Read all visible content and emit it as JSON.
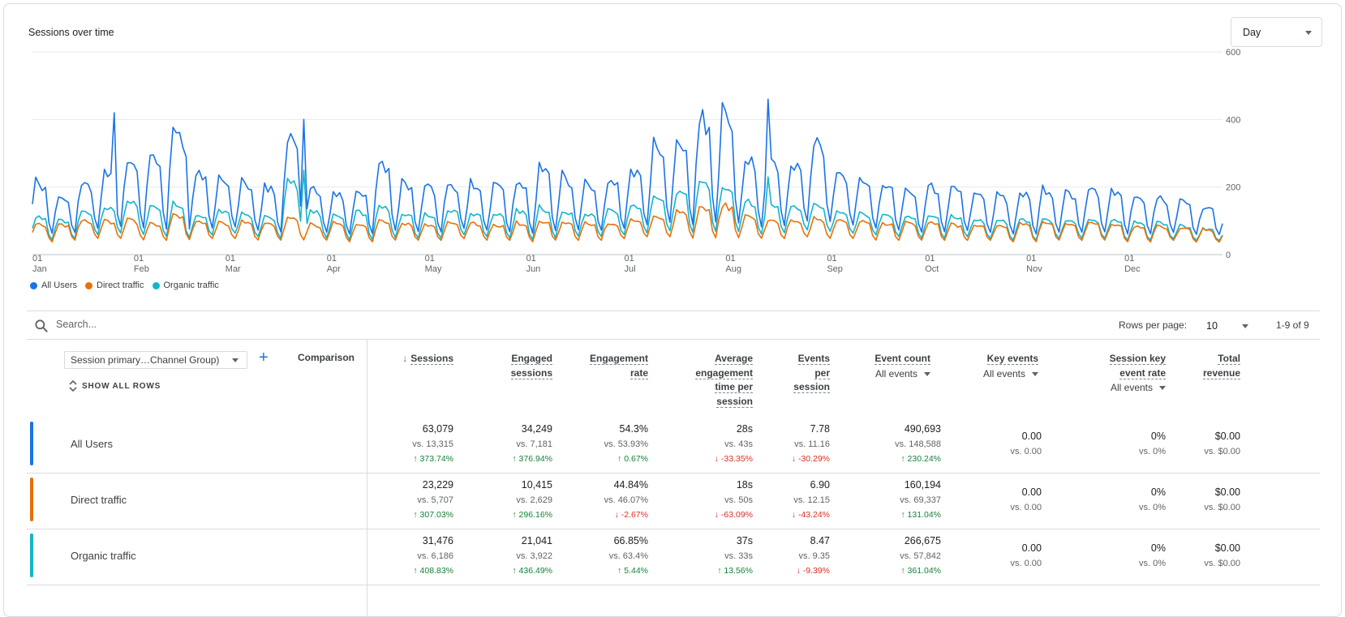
{
  "chart_title": "Sessions over time",
  "period_select": "Day",
  "chart_data": {
    "type": "line",
    "x_tick_labels": [
      [
        "01",
        "Jan"
      ],
      [
        "01",
        "Feb"
      ],
      [
        "01",
        "Mar"
      ],
      [
        "01",
        "Apr"
      ],
      [
        "01",
        "May"
      ],
      [
        "01",
        "Jun"
      ],
      [
        "01",
        "Jul"
      ],
      [
        "01",
        "Aug"
      ],
      [
        "01",
        "Sep"
      ],
      [
        "01",
        "Oct"
      ],
      [
        "01",
        "Nov"
      ],
      [
        "01",
        "Dec"
      ]
    ],
    "y_ticks": [
      0,
      200,
      400,
      600
    ],
    "ylim": [
      0,
      600
    ],
    "days": 365,
    "month_start_days": [
      0,
      31,
      59,
      90,
      120,
      151,
      181,
      212,
      243,
      273,
      304,
      334
    ],
    "series": [
      {
        "name": "All Users",
        "color": "#1a73e8",
        "weekly_low": [
          55,
          60,
          70,
          75,
          70,
          65,
          60,
          70,
          75,
          65,
          60,
          65,
          60,
          55,
          55,
          60,
          60,
          60,
          70,
          65,
          60,
          55,
          60,
          65,
          65,
          70,
          80,
          85,
          75,
          80,
          75,
          70,
          75,
          90,
          85,
          80,
          70,
          65,
          60,
          60,
          65,
          60,
          55,
          55,
          60,
          60,
          60,
          55,
          55,
          60,
          55,
          55,
          60
        ],
        "weekly_high": [
          230,
          190,
          230,
          260,
          300,
          320,
          420,
          260,
          240,
          230,
          220,
          390,
          210,
          200,
          210,
          300,
          230,
          220,
          230,
          230,
          220,
          230,
          280,
          250,
          230,
          240,
          270,
          350,
          360,
          450,
          460,
          320,
          300,
          290,
          360,
          260,
          240,
          230,
          210,
          220,
          210,
          200,
          190,
          200,
          210,
          200,
          210,
          200,
          190,
          180,
          170,
          150,
          120
        ],
        "peaks": [
          [
            25,
            420
          ],
          [
            47,
            290
          ],
          [
            83,
            400
          ],
          [
            211,
            450
          ],
          [
            225,
            460
          ]
        ]
      },
      {
        "name": "Direct traffic",
        "color": "#e8710a",
        "weekly_low": [
          35,
          40,
          45,
          45,
          40,
          40,
          40,
          45,
          45,
          40,
          40,
          40,
          40,
          35,
          35,
          40,
          40,
          40,
          45,
          40,
          40,
          35,
          40,
          40,
          40,
          45,
          50,
          50,
          45,
          45,
          45,
          45,
          45,
          50,
          45,
          45,
          40,
          40,
          40,
          40,
          40,
          40,
          35,
          35,
          40,
          40,
          40,
          35,
          35,
          40,
          35,
          35,
          40
        ],
        "weekly_high": [
          100,
          95,
          110,
          105,
          110,
          100,
          130,
          105,
          100,
          105,
          100,
          120,
          95,
          100,
          100,
          105,
          100,
          95,
          100,
          100,
          95,
          100,
          105,
          100,
          100,
          100,
          110,
          120,
          140,
          150,
          160,
          120,
          110,
          110,
          115,
          110,
          105,
          100,
          100,
          100,
          95,
          95,
          95,
          100,
          100,
          95,
          100,
          95,
          90,
          90,
          85,
          80,
          70
        ],
        "peaks": []
      },
      {
        "name": "Organic traffic",
        "color": "#12b5cb",
        "weekly_low": [
          40,
          45,
          55,
          60,
          55,
          50,
          45,
          55,
          60,
          50,
          45,
          50,
          45,
          40,
          40,
          45,
          45,
          45,
          55,
          50,
          45,
          40,
          45,
          50,
          50,
          55,
          60,
          65,
          60,
          60,
          60,
          55,
          60,
          70,
          65,
          60,
          55,
          50,
          45,
          45,
          50,
          45,
          40,
          40,
          45,
          45,
          45,
          40,
          40,
          45,
          40,
          40,
          45
        ],
        "weekly_high": [
          120,
          110,
          140,
          150,
          170,
          150,
          160,
          120,
          140,
          130,
          120,
          250,
          140,
          130,
          140,
          160,
          130,
          130,
          140,
          130,
          130,
          140,
          150,
          140,
          130,
          140,
          160,
          180,
          200,
          230,
          220,
          170,
          160,
          150,
          160,
          140,
          130,
          130,
          120,
          120,
          120,
          110,
          110,
          110,
          110,
          110,
          110,
          110,
          100,
          100,
          90,
          80,
          70
        ],
        "peaks": [
          [
            83,
            250
          ],
          [
            225,
            230
          ]
        ]
      }
    ]
  },
  "legend": [
    {
      "label": "All Users",
      "color": "#1a73e8"
    },
    {
      "label": "Direct traffic",
      "color": "#e8710a"
    },
    {
      "label": "Organic traffic",
      "color": "#12b5cb"
    }
  ],
  "search": {
    "placeholder": "Search..."
  },
  "pagination": {
    "rows_per_page_label": "Rows per page:",
    "rows_per_page": "10",
    "range": "1-9 of 9"
  },
  "table": {
    "dimension_select": "Session primary…Channel Group)",
    "add_symbol": "+",
    "comparison_label": "Comparison",
    "show_all_rows": "SHOW ALL ROWS",
    "columns": [
      {
        "lines": [
          "Sessions"
        ],
        "sub": ""
      },
      {
        "lines": [
          "Engaged",
          "sessions"
        ],
        "sub": ""
      },
      {
        "lines": [
          "Engagement",
          "rate"
        ],
        "sub": ""
      },
      {
        "lines": [
          "Average",
          "engagement",
          "time per",
          "session"
        ],
        "sub": ""
      },
      {
        "lines": [
          "Events",
          "per",
          "session"
        ],
        "sub": ""
      },
      {
        "lines": [
          "Event count"
        ],
        "sub": "All events"
      },
      {
        "lines": [
          "Key events"
        ],
        "sub": "All events"
      },
      {
        "lines": [
          "Session key",
          "event rate"
        ],
        "sub": "All events"
      },
      {
        "lines": [
          "Total",
          "revenue"
        ],
        "sub": ""
      }
    ],
    "rows": [
      {
        "label": "All Users",
        "color": "#1a73e8",
        "cells": [
          {
            "v": "63,079",
            "vs": "vs. 13,315",
            "ch": "373.74%",
            "dir": "up"
          },
          {
            "v": "34,249",
            "vs": "vs. 7,181",
            "ch": "376.94%",
            "dir": "up"
          },
          {
            "v": "54.3%",
            "vs": "vs. 53.93%",
            "ch": "0.67%",
            "dir": "up"
          },
          {
            "v": "28s",
            "vs": "vs. 43s",
            "ch": "-33.35%",
            "dir": "down"
          },
          {
            "v": "7.78",
            "vs": "vs. 11.16",
            "ch": "-30.29%",
            "dir": "down"
          },
          {
            "v": "490,693",
            "vs": "vs. 148,588",
            "ch": "230.24%",
            "dir": "up"
          },
          {
            "v": "0.00",
            "vs": "vs. 0.00",
            "ch": "",
            "dir": ""
          },
          {
            "v": "0%",
            "vs": "vs. 0%",
            "ch": "",
            "dir": ""
          },
          {
            "v": "$0.00",
            "vs": "vs. $0.00",
            "ch": "",
            "dir": ""
          }
        ]
      },
      {
        "label": "Direct traffic",
        "color": "#e8710a",
        "cells": [
          {
            "v": "23,229",
            "vs": "vs. 5,707",
            "ch": "307.03%",
            "dir": "up"
          },
          {
            "v": "10,415",
            "vs": "vs. 2,629",
            "ch": "296.16%",
            "dir": "up"
          },
          {
            "v": "44.84%",
            "vs": "vs. 46.07%",
            "ch": "-2.67%",
            "dir": "down"
          },
          {
            "v": "18s",
            "vs": "vs. 50s",
            "ch": "-63.09%",
            "dir": "down"
          },
          {
            "v": "6.90",
            "vs": "vs. 12.15",
            "ch": "-43.24%",
            "dir": "down"
          },
          {
            "v": "160,194",
            "vs": "vs. 69,337",
            "ch": "131.04%",
            "dir": "up"
          },
          {
            "v": "0.00",
            "vs": "vs. 0.00",
            "ch": "",
            "dir": ""
          },
          {
            "v": "0%",
            "vs": "vs. 0%",
            "ch": "",
            "dir": ""
          },
          {
            "v": "$0.00",
            "vs": "vs. $0.00",
            "ch": "",
            "dir": ""
          }
        ]
      },
      {
        "label": "Organic traffic",
        "color": "#12b5cb",
        "cells": [
          {
            "v": "31,476",
            "vs": "vs. 6,186",
            "ch": "408.83%",
            "dir": "up"
          },
          {
            "v": "21,041",
            "vs": "vs. 3,922",
            "ch": "436.49%",
            "dir": "up"
          },
          {
            "v": "66.85%",
            "vs": "vs. 63.4%",
            "ch": "5.44%",
            "dir": "up"
          },
          {
            "v": "37s",
            "vs": "vs. 33s",
            "ch": "13.56%",
            "dir": "up"
          },
          {
            "v": "8.47",
            "vs": "vs. 9.35",
            "ch": "-9.39%",
            "dir": "down"
          },
          {
            "v": "266,675",
            "vs": "vs. 57,842",
            "ch": "361.04%",
            "dir": "up"
          },
          {
            "v": "0.00",
            "vs": "vs. 0.00",
            "ch": "",
            "dir": ""
          },
          {
            "v": "0%",
            "vs": "vs. 0%",
            "ch": "",
            "dir": ""
          },
          {
            "v": "$0.00",
            "vs": "vs. $0.00",
            "ch": "",
            "dir": ""
          }
        ]
      }
    ]
  }
}
